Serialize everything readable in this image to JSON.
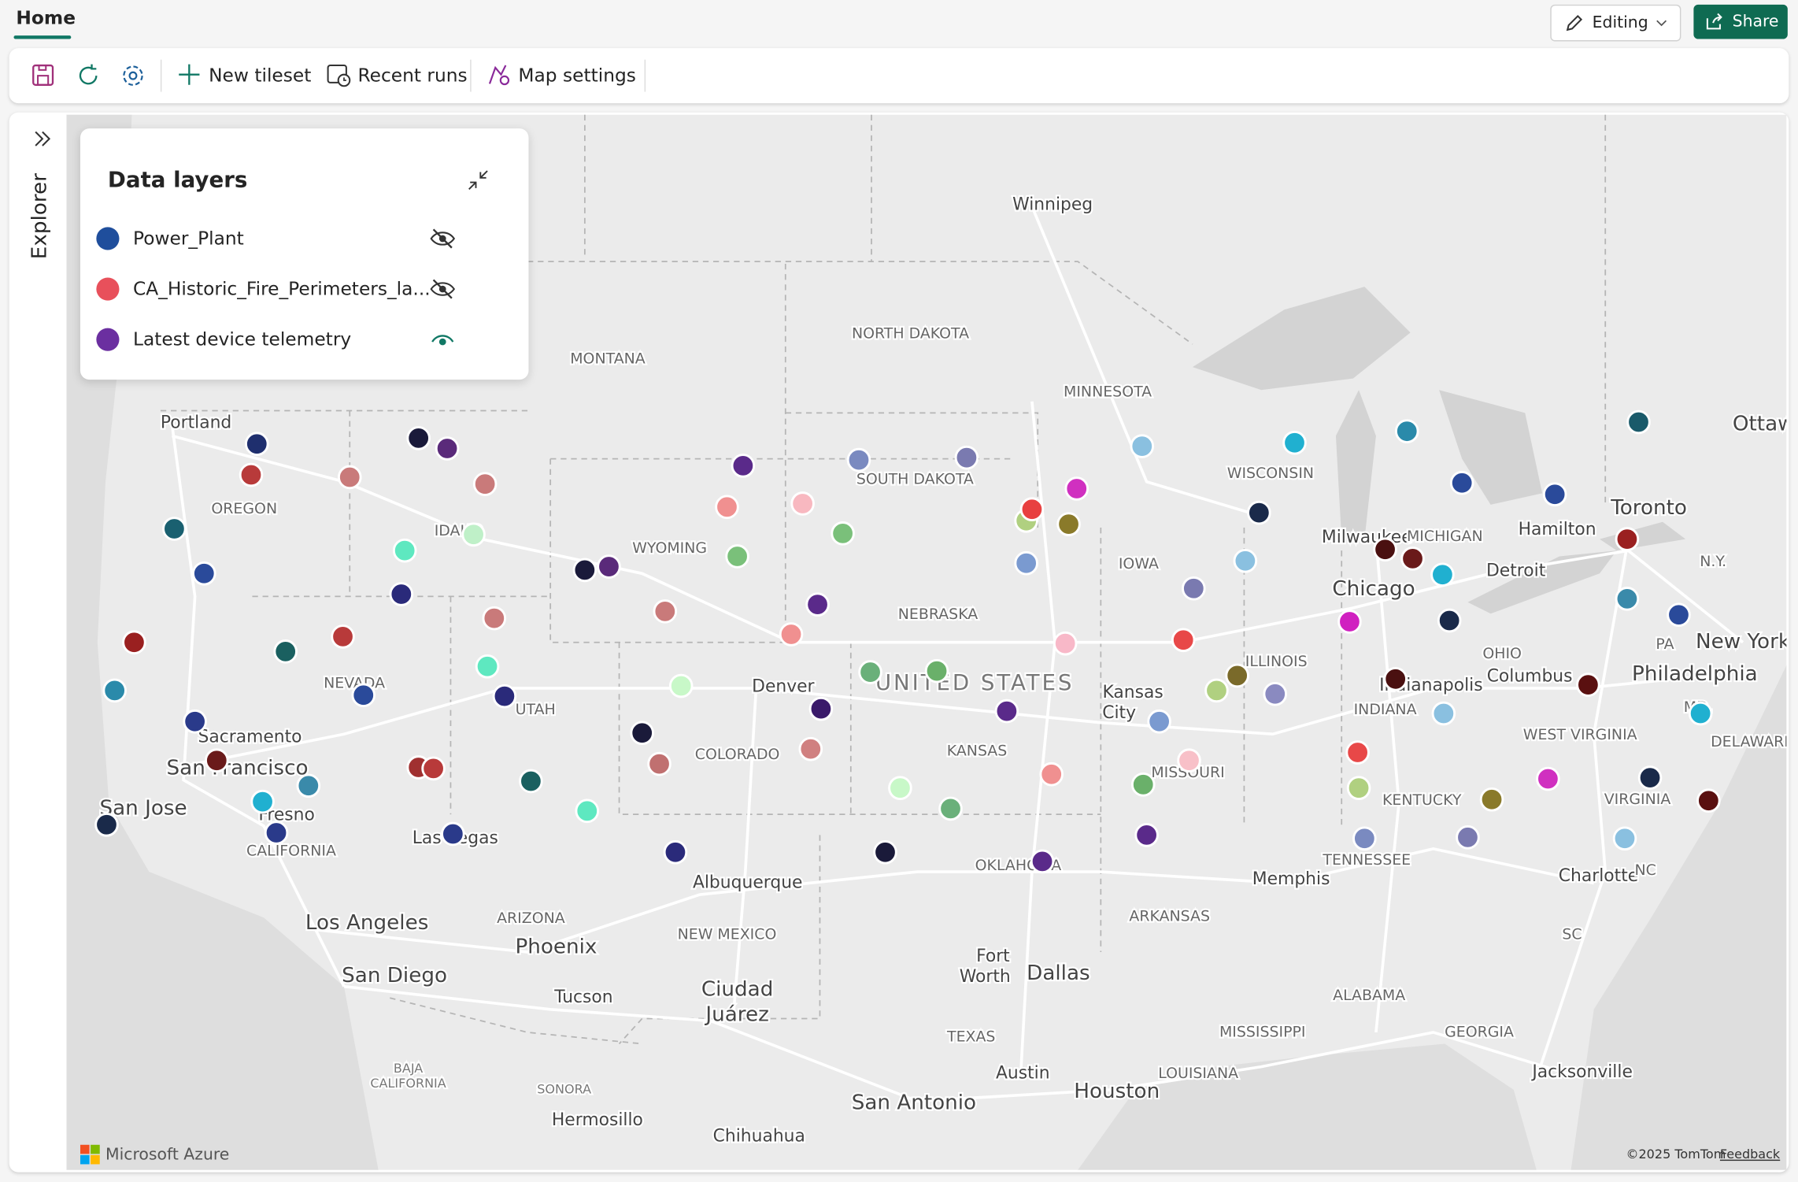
{
  "header": {
    "tab": "Home",
    "editing": "Editing",
    "share": "Share"
  },
  "toolbar": {
    "new_tileset": "New tileset",
    "recent_runs": "Recent runs",
    "map_settings": "Map settings"
  },
  "sidebar": {
    "label": "Explorer"
  },
  "layers_panel": {
    "title": "Data layers",
    "layers": [
      {
        "name": "Power_Plant",
        "color": "#1f4e9c"
      },
      {
        "name": "CA_Historic_Fire_Perimeters_la...",
        "color": "#e8505b"
      },
      {
        "name": "Latest device telemetry",
        "color": "#6b2fa0"
      }
    ]
  },
  "map": {
    "labels": [
      "Winnipeg",
      "NORTH DAKOTA",
      "MONTANA",
      "MINNESOTA",
      "Portland",
      "OREGON",
      "IDAHO",
      "SOUTH DAKOTA",
      "WISCONSIN",
      "WYOMING",
      "Milwaukee",
      "MICHIGAN",
      "Hamilton",
      "Toronto",
      "N.Y.",
      "Detroit",
      "IOWA",
      "Chicago",
      "NEBRASKA",
      "PA",
      "New York",
      "OHIO",
      "ILLINOIS",
      "UNITED STATES",
      "NEVADA",
      "Denver",
      "Kansas",
      "City",
      "Indianapolis",
      "Columbus",
      "Philadelphia",
      "UTAH",
      "INDIANA",
      "MD.",
      "Sacramento",
      "WEST VIRGINIA",
      "DELAWARE",
      "COLORADO",
      "KANSAS",
      "San Francisco",
      "MISSOURI",
      "KENTUCKY",
      "VIRGINIA",
      "San Jose",
      "Fresno",
      "Las Vegas",
      "CALIFORNIA",
      "TENNESSEE",
      "OKLAHOMA",
      "Charlotte",
      "NC",
      "Memphis",
      "Albuquerque",
      "ARKANSAS",
      "ARIZONA",
      "Los Angeles",
      "NEW MEXICO",
      "SC",
      "Phoenix",
      "Fort",
      "Worth",
      "Dallas",
      "San Diego",
      "Ciudad",
      "Juárez",
      "ALABAMA",
      "Tucson",
      "MISSISSIPPI",
      "GEORGIA",
      "TEXAS",
      "BAJA",
      "CALIFORNIA",
      "Austin",
      "LOUISIANA",
      "Jacksonville",
      "SONORA",
      "Houston",
      "San Antonio",
      "Hermosillo",
      "Chihuahua",
      "Ottaw"
    ],
    "logo": "Microsoft Azure",
    "attribution": "©2025 TomTom",
    "feedback": "Feedback"
  }
}
